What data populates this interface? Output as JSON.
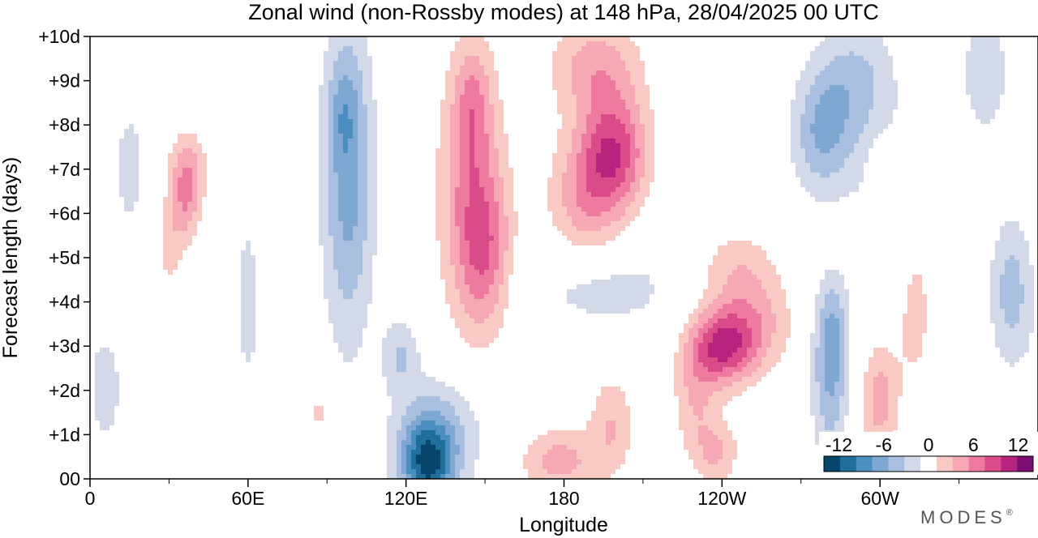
{
  "chart_data": {
    "type": "heatmap",
    "title": "Zonal wind (non-Rossby modes) at 148 hPa,  28/04/2025  00 UTC",
    "xlabel": "Longitude",
    "ylabel": "Forecast length (days)",
    "x_ticks": [
      {
        "lon": 0,
        "label": "0"
      },
      {
        "lon": 60,
        "label": "60E"
      },
      {
        "lon": 120,
        "label": "120E"
      },
      {
        "lon": 180,
        "label": "180"
      },
      {
        "lon": 240,
        "label": "120W"
      },
      {
        "lon": 300,
        "label": "60W"
      }
    ],
    "x_minor_ticks": [
      30,
      90,
      150,
      210,
      270,
      330
    ],
    "xlim": [
      0,
      360
    ],
    "y_ticks": [
      {
        "day": 0,
        "label": "00"
      },
      {
        "day": 1,
        "label": "+1d"
      },
      {
        "day": 2,
        "label": "+2d"
      },
      {
        "day": 3,
        "label": "+3d"
      },
      {
        "day": 4,
        "label": "+4d"
      },
      {
        "day": 5,
        "label": "+5d"
      },
      {
        "day": 6,
        "label": "+6d"
      },
      {
        "day": 7,
        "label": "+7d"
      },
      {
        "day": 8,
        "label": "+8d"
      },
      {
        "day": 9,
        "label": "+9d"
      },
      {
        "day": 10,
        "label": "+10d"
      }
    ],
    "ylim": [
      0,
      10
    ],
    "colorbar": {
      "levels": [
        -14,
        -12,
        -10,
        -8,
        -6,
        -4,
        -2,
        2,
        4,
        6,
        8,
        10,
        12,
        14
      ],
      "colors": [
        "#08456b",
        "#1f6e9c",
        "#4a8fc0",
        "#7ea7d1",
        "#a9bfdf",
        "#d4d9ea",
        "#ffffff",
        "#f9c9c3",
        "#f6a9b4",
        "#ee7aa0",
        "#da4b8a",
        "#b72480",
        "#7d0f72"
      ],
      "tick_labels": [
        {
          "value": -12,
          "label": "-12"
        },
        {
          "value": -6,
          "label": "-6"
        },
        {
          "value": 0,
          "label": "0"
        },
        {
          "value": 6,
          "label": "6"
        },
        {
          "value": 12,
          "label": "12"
        }
      ]
    },
    "features": [
      {
        "lon": 98,
        "day": 6.8,
        "amp": -7,
        "sx": 7,
        "sy": 2.6
      },
      {
        "lon": 96,
        "day": 8.3,
        "amp": -2.5,
        "sx": 4,
        "sy": 0.8
      },
      {
        "lon": 128,
        "day": 0.3,
        "amp": -10,
        "sx": 7,
        "sy": 0.7
      },
      {
        "lon": 132,
        "day": 1.0,
        "amp": -5,
        "sx": 12,
        "sy": 0.9
      },
      {
        "lon": 118,
        "day": 2.8,
        "amp": -4,
        "sx": 5,
        "sy": 0.6
      },
      {
        "lon": 278,
        "day": 7.8,
        "amp": -6,
        "sx": 8,
        "sy": 1.0
      },
      {
        "lon": 290,
        "day": 9.0,
        "amp": -4,
        "sx": 10,
        "sy": 1.0
      },
      {
        "lon": 281,
        "day": 2.3,
        "amp": -6,
        "sx": 5,
        "sy": 1.3
      },
      {
        "lon": 282,
        "day": 3.5,
        "amp": -3,
        "sx": 4,
        "sy": 0.8
      },
      {
        "lon": 350,
        "day": 4.2,
        "amp": -5,
        "sx": 6,
        "sy": 1.2
      },
      {
        "lon": 340,
        "day": 9.2,
        "amp": -4,
        "sx": 6,
        "sy": 1.0
      },
      {
        "lon": 6,
        "day": 2.0,
        "amp": -3,
        "sx": 5,
        "sy": 1.0
      },
      {
        "lon": 195,
        "day": 4.3,
        "amp": -3,
        "sx": 22,
        "sy": 0.7
      },
      {
        "lon": 300,
        "day": 6.5,
        "amp": -2.5,
        "sx": 8,
        "sy": 2.0
      },
      {
        "lon": 60,
        "day": 4.0,
        "amp": -2.5,
        "sx": 5,
        "sy": 2.0
      },
      {
        "lon": 15,
        "day": 7.0,
        "amp": -2.5,
        "sx": 6,
        "sy": 1.5
      },
      {
        "lon": 145,
        "day": 6.5,
        "amp": 6,
        "sx": 9,
        "sy": 2.0
      },
      {
        "lon": 150,
        "day": 5.0,
        "amp": 5,
        "sx": 7,
        "sy": 1.2
      },
      {
        "lon": 145,
        "day": 8.5,
        "amp": 4,
        "sx": 5,
        "sy": 1.0
      },
      {
        "lon": 199,
        "day": 7.4,
        "amp": 9,
        "sx": 9,
        "sy": 0.9
      },
      {
        "lon": 188,
        "day": 6.3,
        "amp": 5,
        "sx": 10,
        "sy": 1.0
      },
      {
        "lon": 192,
        "day": 9.3,
        "amp": 5,
        "sx": 12,
        "sy": 0.8
      },
      {
        "lon": 240,
        "day": 3.0,
        "amp": 9,
        "sx": 8,
        "sy": 0.6
      },
      {
        "lon": 252,
        "day": 3.5,
        "amp": 5,
        "sx": 10,
        "sy": 0.8
      },
      {
        "lon": 230,
        "day": 2.0,
        "amp": 4,
        "sx": 6,
        "sy": 1.0
      },
      {
        "lon": 245,
        "day": 4.8,
        "amp": 3,
        "sx": 10,
        "sy": 0.6
      },
      {
        "lon": 198,
        "day": 1.2,
        "amp": 4,
        "sx": 6,
        "sy": 0.8
      },
      {
        "lon": 178,
        "day": 0.4,
        "amp": 5,
        "sx": 10,
        "sy": 0.5
      },
      {
        "lon": 238,
        "day": 0.6,
        "amp": 4,
        "sx": 6,
        "sy": 0.5
      },
      {
        "lon": 300,
        "day": 1.8,
        "amp": 5,
        "sx": 5,
        "sy": 1.0
      },
      {
        "lon": 313,
        "day": 3.8,
        "amp": 3,
        "sx": 5,
        "sy": 1.3
      },
      {
        "lon": 37,
        "day": 7.0,
        "amp": 5,
        "sx": 5,
        "sy": 0.6
      },
      {
        "lon": 36,
        "day": 6.1,
        "amp": 4,
        "sx": 4,
        "sy": 0.6
      },
      {
        "lon": 30,
        "day": 5.2,
        "amp": 2.5,
        "sx": 4,
        "sy": 0.8
      },
      {
        "lon": 300,
        "day": 6.5,
        "amp": 3,
        "sx": 4,
        "sy": 1.0
      },
      {
        "lon": 87,
        "day": 1.5,
        "amp": 2.5,
        "sx": 3,
        "sy": 0.4
      }
    ]
  },
  "brand": "MODES",
  "brand_mark": "®"
}
